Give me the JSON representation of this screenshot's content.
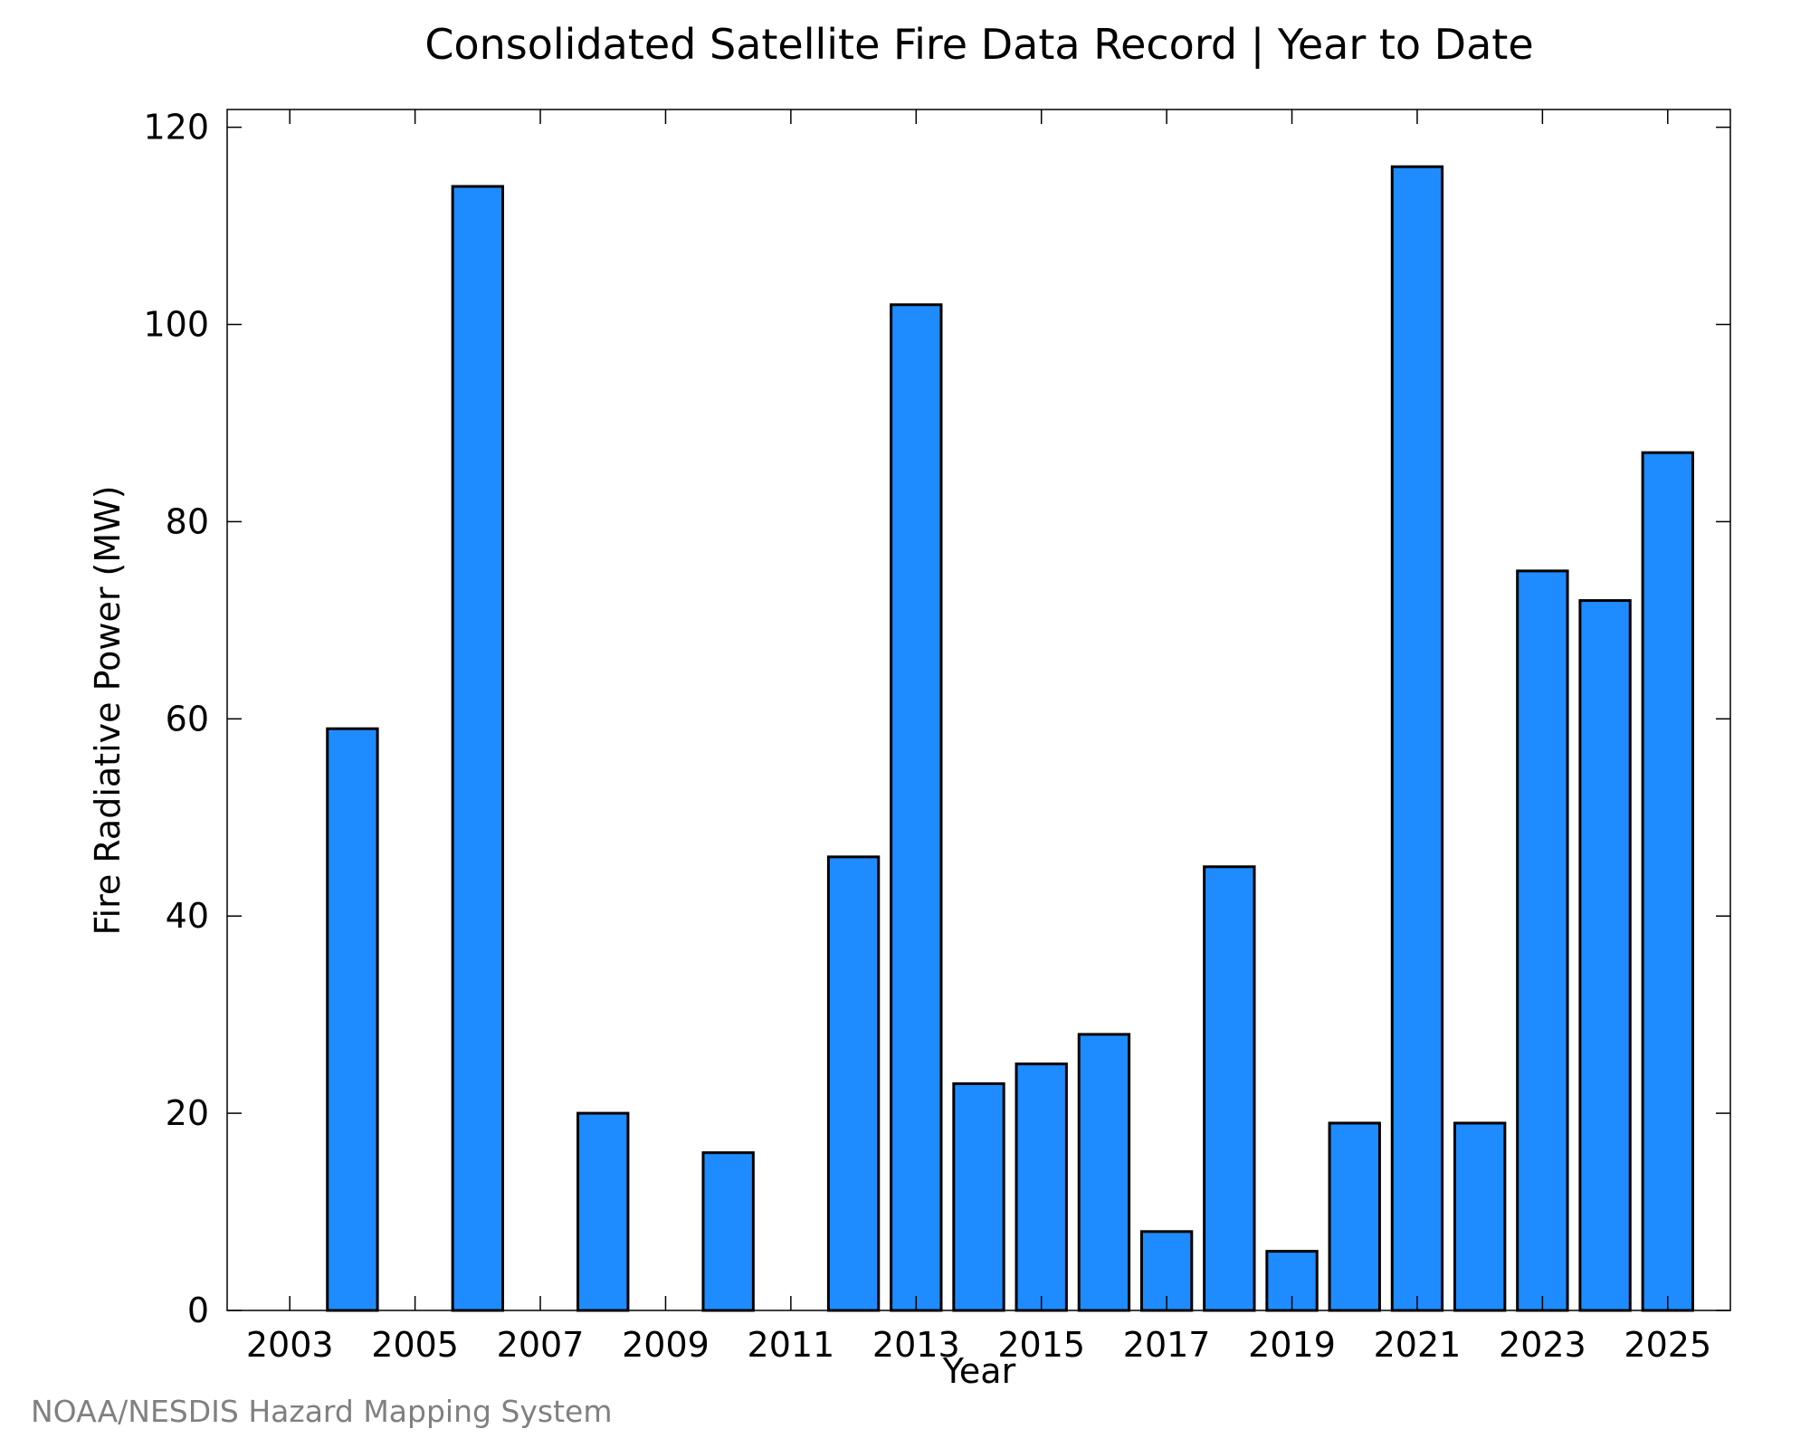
{
  "chart_data": {
    "type": "bar",
    "title": "Consolidated Satellite Fire Data Record | Year to Date",
    "xlabel": "Year",
    "ylabel": "Fire Radiative Power (MW)",
    "categories": [
      2003,
      2004,
      2005,
      2006,
      2007,
      2008,
      2009,
      2010,
      2011,
      2012,
      2013,
      2014,
      2015,
      2016,
      2017,
      2018,
      2019,
      2020,
      2021,
      2022,
      2023,
      2024,
      2025
    ],
    "values": [
      0,
      59,
      0,
      114,
      0,
      20,
      0,
      16,
      0,
      46,
      102,
      23,
      25,
      28,
      8,
      45,
      6,
      19,
      116,
      19,
      75,
      72,
      87
    ],
    "xlim": [
      2002.0,
      2026.0
    ],
    "ylim": [
      0,
      121.8
    ],
    "x_ticks": [
      "2003",
      "2005",
      "2007",
      "2009",
      "2011",
      "2013",
      "2015",
      "2017",
      "2019",
      "2021",
      "2023",
      "2025"
    ],
    "y_ticks": [
      "0",
      "20",
      "40",
      "60",
      "80",
      "100",
      "120"
    ],
    "bar_color": "#1e8cff",
    "edge_color": "#000000",
    "grid": false,
    "legend": "none"
  },
  "credit": "NOAA/NESDIS Hazard Mapping System"
}
